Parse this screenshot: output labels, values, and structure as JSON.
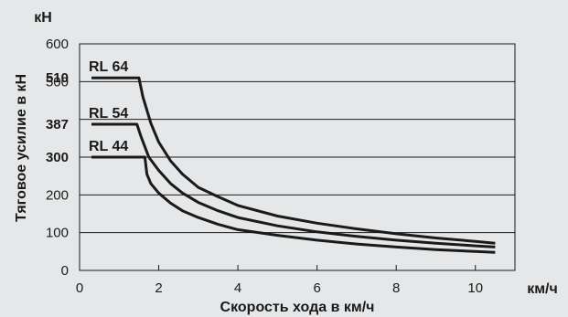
{
  "chart_data": {
    "type": "line",
    "unit_y": "кН",
    "unit_x": "км/ч",
    "ylabel": "Тяговое усилие в кН",
    "xlabel": "Скорость хода в км/ч",
    "xlim": [
      0,
      11
    ],
    "ylim": [
      0,
      600
    ],
    "x_ticks": [
      0,
      2,
      4,
      6,
      8,
      10
    ],
    "y_ticks": [
      0,
      100,
      200,
      300,
      400,
      500,
      600
    ],
    "y_tick_labels": [
      "0",
      "100",
      "200",
      "",
      "",
      "500",
      "600"
    ],
    "y_extra_ticks": [
      {
        "value": 300,
        "label": "300"
      },
      {
        "value": 387,
        "label": "387"
      },
      {
        "value": 510,
        "label": "510"
      }
    ],
    "grid": true,
    "series": [
      {
        "name": "RL 64",
        "x": [
          0.3,
          1.5,
          1.6,
          1.8,
          2.0,
          2.3,
          2.6,
          3.0,
          3.5,
          4,
          5,
          6,
          7,
          8,
          9,
          10,
          10.5
        ],
        "y": [
          510,
          510,
          460,
          390,
          340,
          290,
          255,
          220,
          195,
          172,
          144,
          125,
          110,
          97,
          86,
          77,
          72
        ]
      },
      {
        "name": "RL 54",
        "x": [
          0.3,
          1.45,
          1.55,
          1.75,
          2.0,
          2.3,
          2.6,
          3.0,
          3.5,
          4,
          5,
          6,
          7,
          8,
          9,
          10,
          10.5
        ],
        "y": [
          387,
          387,
          355,
          300,
          265,
          230,
          205,
          180,
          158,
          140,
          118,
          102,
          90,
          80,
          72,
          65,
          62
        ]
      },
      {
        "name": "RL 44",
        "x": [
          0.3,
          1.65,
          1.7,
          1.8,
          2.0,
          2.3,
          2.6,
          3.0,
          3.5,
          4,
          5,
          6,
          7,
          8,
          9,
          10,
          10.5
        ],
        "y": [
          300,
          300,
          255,
          230,
          205,
          178,
          158,
          140,
          122,
          108,
          93,
          80,
          70,
          62,
          55,
          50,
          48
        ]
      }
    ]
  }
}
